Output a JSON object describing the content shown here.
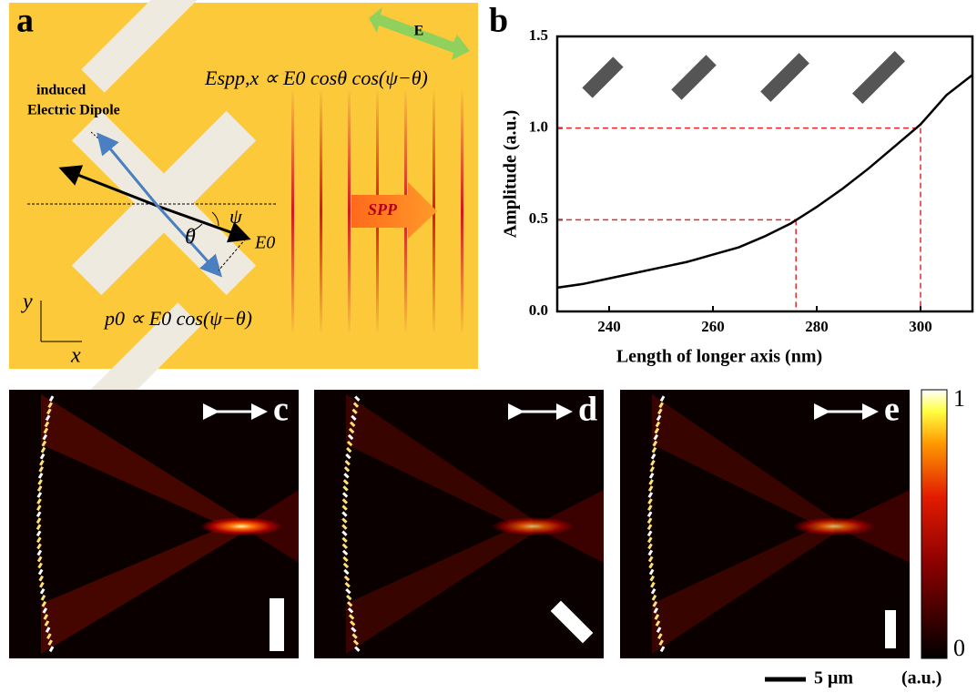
{
  "panel_a": {
    "label": "a",
    "field_label": "E",
    "spp_formula": "Espp,x ∝ E0 cosθ cos(ψ−θ)",
    "dipole_line1": "induced",
    "dipole_line2": "Electric Dipole",
    "spp_label": "SPP",
    "psi": "ψ",
    "theta": "θ",
    "e0": "E0",
    "dipole_formula": "p0 ∝ E0 cos(ψ−θ)",
    "y_axis": "y",
    "x_axis": "x"
  },
  "chart_data": {
    "type": "line",
    "label": "b",
    "x_label": "Length of longer axis (nm)",
    "y_label": "Amplitude (a.u.)",
    "x": [
      230,
      235,
      240,
      245,
      250,
      255,
      260,
      265,
      270,
      275,
      280,
      285,
      290,
      295,
      300,
      305,
      310
    ],
    "series": [
      {
        "color": "#000000",
        "values": [
          0.13,
          0.15,
          0.18,
          0.21,
          0.24,
          0.27,
          0.31,
          0.35,
          0.41,
          0.48,
          0.57,
          0.67,
          0.78,
          0.9,
          1.02,
          1.18,
          1.29
        ]
      }
    ],
    "reference_points": {
      "x": [
        276,
        300
      ],
      "y": [
        0.5,
        1.0
      ],
      "color": "#e8262b"
    },
    "xlim": [
      230,
      310
    ],
    "xticks": [
      240,
      260,
      280,
      300
    ],
    "ylim": [
      0,
      1.5
    ],
    "yticks": [
      {
        "value": 0,
        "label": "0.0"
      },
      0.5,
      {
        "value": 1,
        "label": "1.0"
      },
      1.5
    ]
  },
  "panels": [
    {
      "label": "c"
    },
    {
      "label": "d"
    },
    {
      "label": "e"
    }
  ],
  "colorbar": {
    "max_label": "1",
    "min_label": "0",
    "unit": "(a.u.)"
  },
  "scale_bar": "5 μm"
}
